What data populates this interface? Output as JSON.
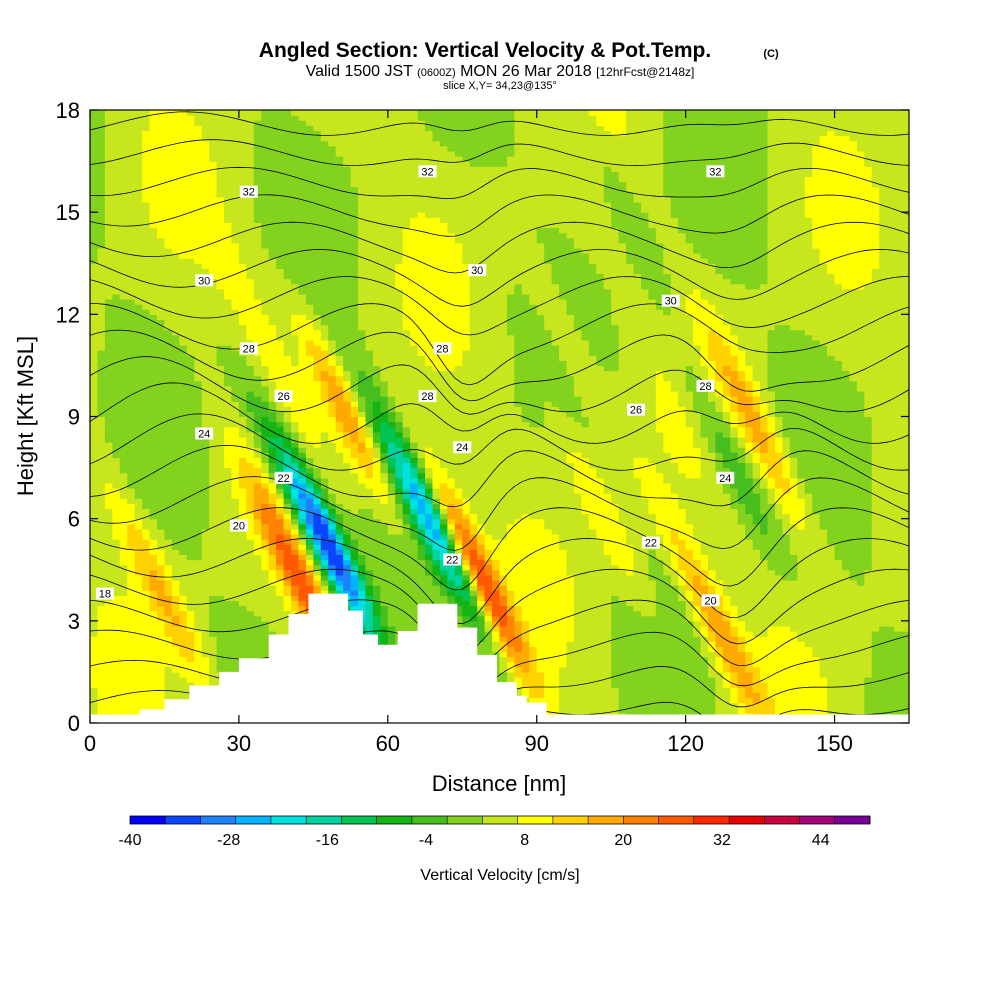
{
  "chart_data": {
    "type": "heatmap",
    "title": "Angled Section: Vertical Velocity & Pot.Temp.",
    "title_suffix": "(C)",
    "subtitle_parts": [
      "Valid 1500 JST",
      "(0600Z)",
      "MON 26 Mar 2018",
      "[12hrFcst@2148z]"
    ],
    "slice_text": "slice X,Y= 34,23@135°",
    "xlabel": "Distance [nm]",
    "ylabel": "Height [Kft MSL]",
    "xlim": [
      0,
      165
    ],
    "ylim": [
      0,
      18
    ],
    "xticks": [
      0,
      30,
      60,
      90,
      120,
      150
    ],
    "yticks": [
      0,
      3,
      6,
      9,
      12,
      15,
      18
    ],
    "colorbar": {
      "title": "Vertical Velocity [cm/s]",
      "min": -40,
      "max": 50,
      "tick_values": [
        -40,
        -28,
        -16,
        -4,
        8,
        20,
        32,
        44
      ],
      "tick_labels": [
        "-40",
        "-28",
        "-16",
        "-4",
        "8",
        "20",
        "32",
        "44"
      ],
      "colors": [
        "#0000ff",
        "#0a46ff",
        "#1e82ff",
        "#00b4ff",
        "#00e1e1",
        "#00d2a0",
        "#00c350",
        "#14b414",
        "#46be1e",
        "#82d21e",
        "#c8e61e",
        "#ffff00",
        "#ffd200",
        "#ffaa00",
        "#ff8200",
        "#ff5a00",
        "#ff2800",
        "#e60000",
        "#c8003c",
        "#a00078",
        "#780096"
      ]
    },
    "terrain": [
      [
        10,
        0.4
      ],
      [
        15,
        0.7
      ],
      [
        20,
        1.1
      ],
      [
        26,
        1.5
      ],
      [
        30,
        1.9
      ],
      [
        36,
        2.6
      ],
      [
        40,
        3.2
      ],
      [
        44,
        3.8
      ],
      [
        48,
        3.8
      ],
      [
        52,
        3.3
      ],
      [
        55,
        2.6
      ],
      [
        58,
        2.3
      ],
      [
        62,
        2.7
      ],
      [
        66,
        3.5
      ],
      [
        70,
        3.5
      ],
      [
        74,
        2.8
      ],
      [
        78,
        2.0
      ],
      [
        82,
        1.2
      ],
      [
        86,
        0.8
      ],
      [
        88,
        0.6
      ],
      [
        92,
        0.4
      ]
    ],
    "updrafts": [
      {
        "x": 48,
        "z": 5.3,
        "v": -38
      },
      {
        "x": 73,
        "z": 5.1,
        "v": -30
      },
      {
        "x": 77,
        "z": 4.6,
        "v": 38
      },
      {
        "x": 43,
        "z": 4.0,
        "v": 22
      },
      {
        "x": 52,
        "z": 9.0,
        "v": 16
      },
      {
        "x": 33,
        "z": 12.0,
        "v": 6
      },
      {
        "x": 126,
        "z": 3.0,
        "v": 16
      },
      {
        "x": 135,
        "z": 8.5,
        "v": 14
      },
      {
        "x": 14,
        "z": 4.0,
        "v": 12
      },
      {
        "x": 128,
        "z": 8.0,
        "v": -10
      },
      {
        "x": 64,
        "z": 7.0,
        "v": -14
      },
      {
        "x": 104,
        "z": 6.0,
        "v": 8
      },
      {
        "x": 97,
        "z": 11.0,
        "v": 7
      },
      {
        "x": 40,
        "z": 7.0,
        "v": -8
      },
      {
        "x": 108,
        "z": 15.0,
        "v": -6
      }
    ],
    "theta_contours": [
      {
        "level": 18,
        "label": "18",
        "base_z": 3.8
      },
      {
        "level": 20,
        "label": "20",
        "base_z": 5.8
      },
      {
        "level": 22,
        "label": "22",
        "base_z": 7.2
      },
      {
        "level": 24,
        "label": "24",
        "base_z": 8.5
      },
      {
        "level": 26,
        "label": "26",
        "base_z": 9.6
      },
      {
        "level": 28,
        "label": "28",
        "base_z": 11.0
      },
      {
        "level": 30,
        "label": "30",
        "base_z": 13.0
      },
      {
        "level": 32,
        "label": "32",
        "base_z": 15.8
      }
    ],
    "contour_labels": [
      {
        "text": "18",
        "x": 3,
        "z": 3.8
      },
      {
        "text": "20",
        "x": 30,
        "z": 5.8
      },
      {
        "text": "20",
        "x": 125,
        "z": 3.6
      },
      {
        "text": "22",
        "x": 39,
        "z": 7.2
      },
      {
        "text": "22",
        "x": 73,
        "z": 4.8
      },
      {
        "text": "22",
        "x": 113,
        "z": 5.3
      },
      {
        "text": "24",
        "x": 23,
        "z": 8.5
      },
      {
        "text": "24",
        "x": 75,
        "z": 8.1
      },
      {
        "text": "24",
        "x": 128,
        "z": 7.2
      },
      {
        "text": "26",
        "x": 39,
        "z": 9.6
      },
      {
        "text": "26",
        "x": 110,
        "z": 9.2
      },
      {
        "text": "28",
        "x": 32,
        "z": 11.0
      },
      {
        "text": "28",
        "x": 68,
        "z": 9.6
      },
      {
        "text": "28",
        "x": 71,
        "z": 11.0
      },
      {
        "text": "28",
        "x": 124,
        "z": 9.9
      },
      {
        "text": "30",
        "x": 23,
        "z": 13.0
      },
      {
        "text": "30",
        "x": 78,
        "z": 13.3
      },
      {
        "text": "30",
        "x": 117,
        "z": 12.4
      },
      {
        "text": "32",
        "x": 32,
        "z": 15.6
      },
      {
        "text": "32",
        "x": 68,
        "z": 16.2
      },
      {
        "text": "32",
        "x": 126,
        "z": 16.2
      }
    ]
  },
  "colors": {
    "background": "#ffffff",
    "terrain": "#ffffff",
    "contour": "#000000"
  }
}
